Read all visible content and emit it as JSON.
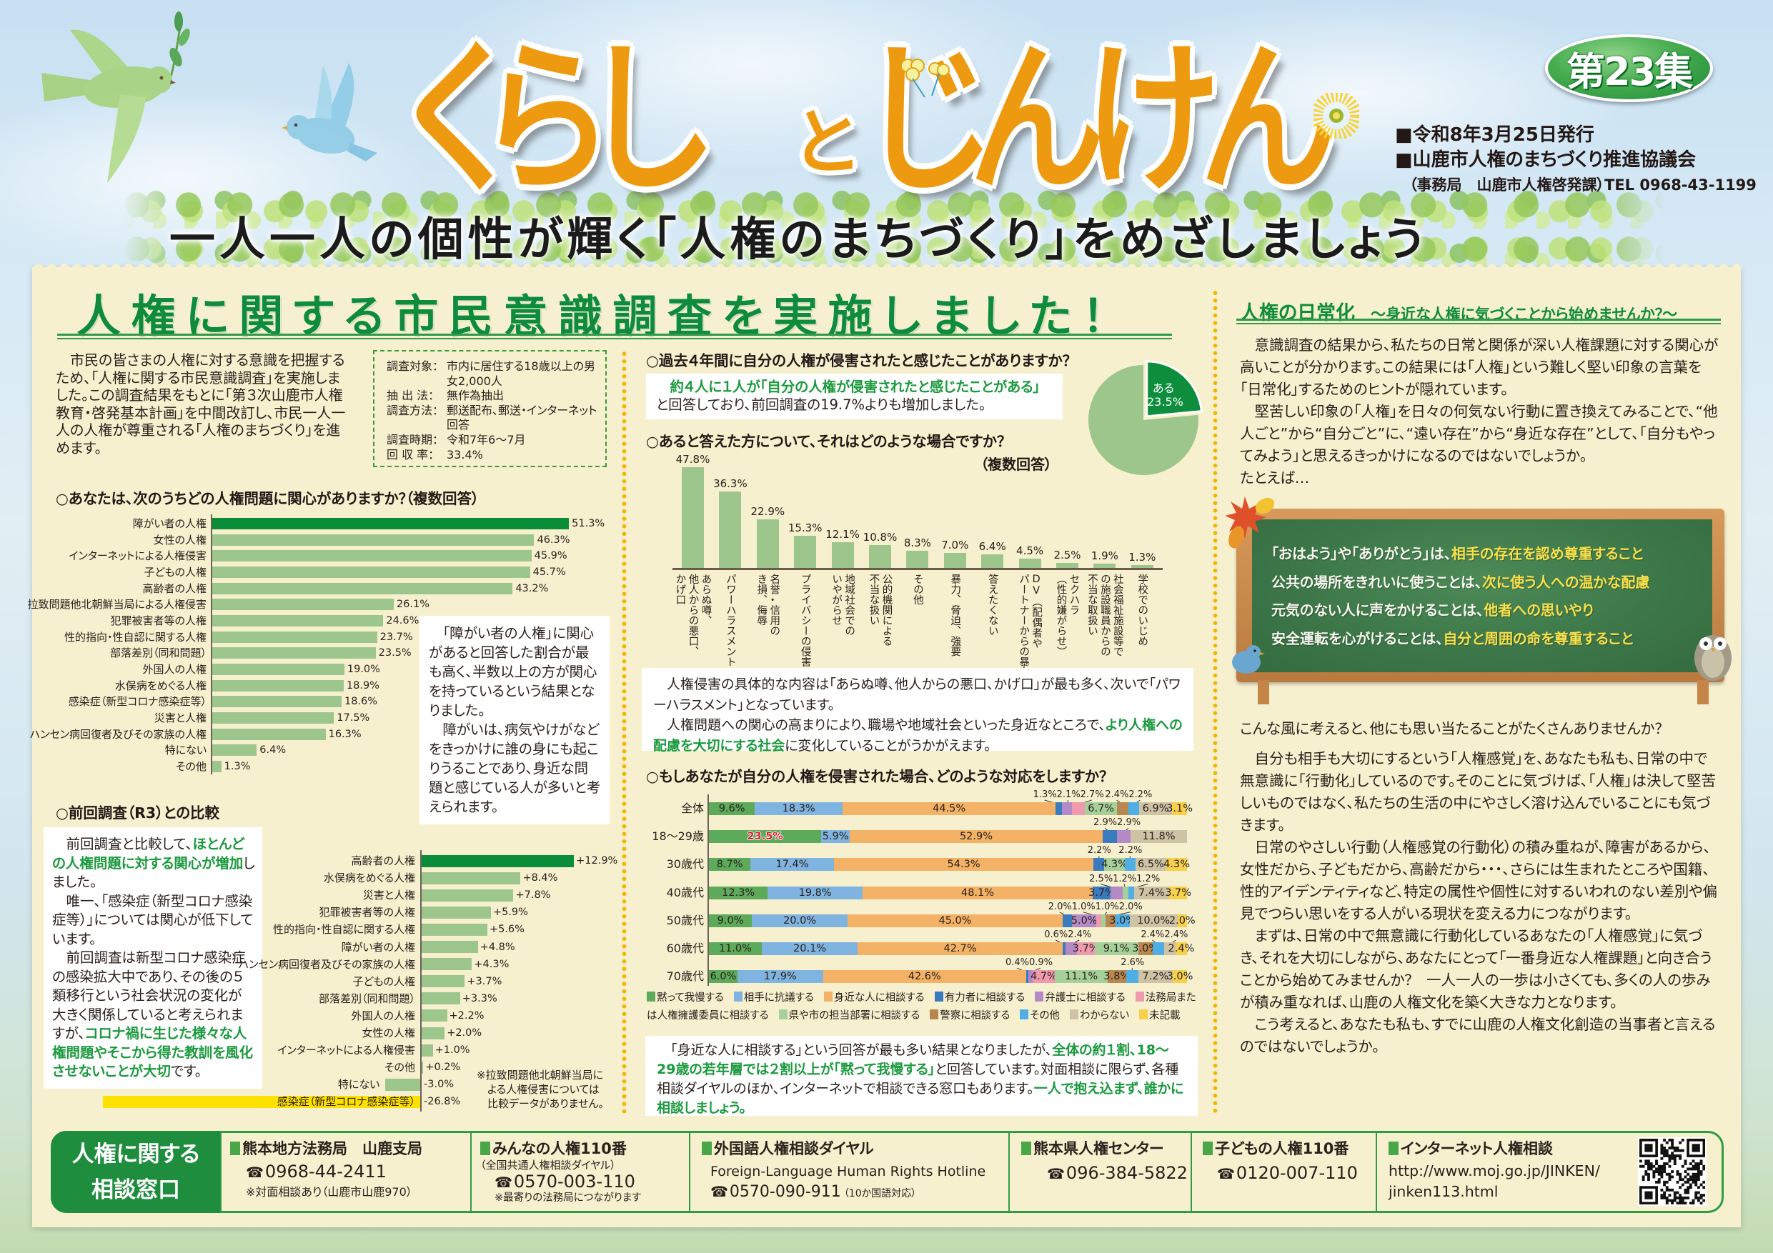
{
  "header": {
    "title_part1": "くらし",
    "title_connector": "と",
    "title_part2": "じんけん",
    "issue_badge": "第23集",
    "info_lines": [
      "■令和8年3月25日発行",
      "■山鹿市人権のまちづくり推進協議会",
      "（事務局　山鹿市人権啓発課）TEL 0968-43-1199"
    ],
    "subtitle": "一人一人の個性が輝く「人権のまちづくり」をめざしましょう"
  },
  "survey": {
    "heading": "人権に関する市民意識調査を実施しました！",
    "intro": "市民の皆さまの人権に対する意識を把握するため、「人権に関する市民意識調査」を実施しました。この調査結果をもとに「第３次山鹿市人権教育・啓発基本計画」を中間改訂し、市民一人一人の人権が尊重される「人権のまちづくり」を進めます。",
    "details": [
      {
        "label": "調査対象：",
        "value": "市内に居住する18歳以上の男女2,000人"
      },
      {
        "label": "抽 出 法：",
        "value": "無作為抽出"
      },
      {
        "label": "調査方法：",
        "value": "郵送配布、郵送・インターネット回答"
      },
      {
        "label": "調査時期：",
        "value": "令和7年6～7月"
      },
      {
        "label": "回 収 率：",
        "value": "33.4%"
      }
    ]
  },
  "interest": {
    "question": "○あなたは、次のうちどの人権問題に関心がありますか？（複数回答）",
    "callout": [
      "「障がい者の人権」に関心があると回答した割合が最も高く、半数以上の方が関心を持っているという結果となりました。",
      "障がいは、病気やけがなどをきっかけに誰の身にも起こりうることであり、身近な問題と感じている人が多いと考えられます。"
    ]
  },
  "comparison": {
    "heading": "○前回調査（R3）との比較",
    "p1": [
      "前回調査と比較して、",
      "ほとんどの人権問題に対する関心が増加",
      "しました。"
    ],
    "p2": "唯一、「感染症（新型コロナ感染症等）」については関心が低下しています。",
    "p3": [
      "前回調査は新型コロナ感染症の感染拡大中であり、その後の５類移行という社会状況の変化が大きく関係していると考えられますが、",
      "コロナ禍に生じた様々な人権問題やそこから得た教訓を風化させないことが大切",
      "です。"
    ],
    "note": [
      "※拉致問題他北朝鮮当局に",
      "よる人権侵害については",
      "比較データがありません。"
    ]
  },
  "violation": {
    "question": "○過去４年間に自分の人権が侵害されたと感じたことがありますか？",
    "summary": [
      "約４人に１人が「自分の人権が侵害されたと感じたことがある」",
      "と回答しており、前回調査の19.7%よりも増加しました。"
    ],
    "pie_label": "ある",
    "pie_value": "23.5%"
  },
  "cases": {
    "question": "○あると答えた方について、それはどのような場合ですか？",
    "multi": "（複数回答）",
    "p1": "人権侵害の具体的な内容は「あらぬ噂、他人からの悪口、かげ口」が最も多く、次いで「パワーハラスメント」となっています。",
    "p2": [
      "人権問題への関心の高まりにより、職場や地域社会といった身近なところで、",
      "より人権への配慮を大切にする社会",
      "に変化していることがうかがえます。"
    ]
  },
  "response": {
    "question": "○もしあなたが自分の人権を侵害された場合、どのような対応をしますか？",
    "summary": [
      "「身近な人に相談する」という回答が最も多い結果となりましたが、",
      "全体の約１割、18～29歳の若年層では２割以上が「黙って我慢する」",
      "と回答しています。対面相談に限らず、各種相談ダイヤルのほか、インターネットで相談できる窓口もあります。",
      "一人で抱え込まず、誰かに相談しましょう。"
    ]
  },
  "daily": {
    "title": "人権の日常化",
    "subtitle": "～身近な人権に気づくことから始めませんか？～",
    "p1": "意識調査の結果から、私たちの日常と関係が深い人権課題に対する関心が高いことが分かります。この結果には「人権」という難しく堅い印象の言葉を「日常化」するためのヒントが隠れています。",
    "p2": "堅苦しい印象の「人権」を日々の何気ない行動に置き換えてみることで、“他人ごと”から“自分ごと”に、“遠い存在”から“身近な存在”として、「自分もやってみよう」と思えるきっかけになるのではないでしょうか。",
    "p3": "たとえば…",
    "board": [
      {
        "a": "「おはよう」や「ありがとう」は、",
        "b": "相手の存在を認め尊重すること"
      },
      {
        "a": "公共の場所をきれいに使うことは、",
        "b": "次に使う人への温かな配慮"
      },
      {
        "a": "元気のない人に声をかけることは、",
        "b": "他者への思いやり"
      },
      {
        "a": "安全運転を心がけることは、",
        "b": "自分と周囲の命を尊重すること"
      }
    ],
    "p4": "こんな風に考えると、他にも思い当たることがたくさんありませんか？",
    "p5": "自分も相手も大切にするという「人権感覚」を、あなたも私も、日常の中で無意識に「行動化」しているのです。そのことに気づけば、「人権」は決して堅苦しいものではなく、私たちの生活の中にやさしく溶け込んでいることにも気づきます。",
    "p6": "日常のやさしい行動（人権感覚の行動化）の積み重ねが、障害があるから、女性だから、子どもだから、高齢だから・・・、さらには生まれたところや国籍、性的アイデンティティなど、特定の属性や個性に対するいわれのない差別や偏見でつらい思いをする人がいる現状を変える力につながります。",
    "p7": "まずは、日常の中で無意識に行動化しているあなたの「人権感覚」に気づき、それを大切にしながら、あなたにとって「一番身近な人権課題」と向き合うことから始めてみませんか？　一人一人の一歩は小さくても、多くの人の歩みが積み重なれば、山鹿の人権文化を築く大きな力となります。",
    "p8": "こう考えると、あなたも私も、すでに山鹿の人権文化創造の当事者と言えるのではないでしょうか。"
  },
  "footer": {
    "title_lines": [
      "人権に関する",
      "相談窓口"
    ],
    "icons": {
      "phone": "phone-icon",
      "bullet": "green-square-icon",
      "qr": "qr-code"
    },
    "contacts": [
      {
        "name": "熊本地方法務局　山鹿支局",
        "phone": "0968-44-2411",
        "note": "※対面相談あり（山鹿市山鹿970）"
      },
      {
        "name": "みんなの人権110番",
        "sub": "（全国共通人権相談ダイヤル）",
        "phone": "0570-003-110",
        "note": "※最寄りの法務局につながります"
      },
      {
        "name": "外国語人権相談ダイヤル",
        "sub": "Foreign-Language Human Rights Hotline",
        "phone": "0570-090-911",
        "note": "（10か国語対応）"
      },
      {
        "name": "熊本県人権センター",
        "phone": "096-384-5822"
      },
      {
        "name": "子どもの人権110番",
        "phone": "0120-007-110"
      },
      {
        "name": "インターネット人権相談",
        "url_line1": "http://www.moj.go.jp/JINKEN/",
        "url_line2": "jinken113.html"
      }
    ]
  },
  "colors": {
    "title_orange": "#ee9a10",
    "heading_green": "#0e8c3a",
    "emphasis_green": "#1b9a3e",
    "panel_cream": "#f7f0cf",
    "board_green": "#3c7648",
    "board_highlight": "#f8e04b"
  },
  "chart_data": [
    {
      "id": "interest",
      "type": "bar",
      "orientation": "horizontal",
      "title": "あなたは、次のうちどの人権問題に関心がありますか？（複数回答）",
      "categories": [
        "障がい者の人権",
        "女性の人権",
        "インターネットによる人権侵害",
        "子どもの人権",
        "高齢者の人権",
        "拉致問題他北朝鮮当局による人権侵害",
        "犯罪被害者等の人権",
        "性的指向・性自認に関する人権",
        "部落差別（同和問題）",
        "外国人の人権",
        "水俣病をめぐる人権",
        "感染症（新型コロナ感染症等）",
        "災害と人権",
        "ハンセン病回復者及びその家族の人権",
        "特にない",
        "その他"
      ],
      "values": [
        51.3,
        46.3,
        45.9,
        45.7,
        43.2,
        26.1,
        24.6,
        23.7,
        23.5,
        19.0,
        18.9,
        18.6,
        17.5,
        16.3,
        6.4,
        1.3
      ],
      "unit": "%",
      "highlight": [
        0
      ],
      "colors": {
        "highlight": "#0a8d38",
        "default": "#9cc68c"
      },
      "grid": false
    },
    {
      "id": "comparison",
      "type": "bar",
      "orientation": "horizontal",
      "title": "前回調査（R3）との比較",
      "categories": [
        "高齢者の人権",
        "水俣病をめぐる人権",
        "災害と人権",
        "犯罪被害者等の人権",
        "性的指向・性自認に関する人権",
        "障がい者の人権",
        "ハンセン病回復者及びその家族の人権",
        "子どもの人権",
        "部落差別（同和問題）",
        "外国人の人権",
        "女性の人権",
        "インターネットによる人権侵害",
        "その他",
        "特にない",
        "感染症（新型コロナ感染症等）"
      ],
      "values": [
        12.9,
        8.4,
        7.8,
        5.9,
        5.6,
        4.8,
        4.3,
        3.7,
        3.3,
        2.2,
        2.0,
        1.0,
        0.2,
        -3.0,
        -26.8
      ],
      "unit": "%",
      "highlight": [
        0
      ],
      "highlight_negative": [
        14
      ],
      "colors": {
        "highlight": "#0a8d38",
        "default": "#9cc68c",
        "negative_highlight": "#ffe100"
      },
      "grid": false
    },
    {
      "id": "violated",
      "type": "pie",
      "title": "過去４年間に自分の人権が侵害されたと感じたことがありますか？",
      "slices": [
        {
          "label": "ある",
          "value": 23.5,
          "color": "#0e8e3c"
        },
        {
          "label": "",
          "value": 76.5,
          "color": "#9cc68c"
        }
      ]
    },
    {
      "id": "cases",
      "type": "bar",
      "orientation": "vertical",
      "title": "あると答えた方について、それはどのような場合ですか？（複数回答）",
      "categories": [
        "あらぬ噂、他人からの悪口、かげ口",
        "パワーハラスメント",
        "名誉・信用のき損、侮辱",
        "プライバシーの侵害",
        "地域社会でのいやがらせ",
        "公的機関による不当な扱い",
        "その他",
        "暴力、脅迫、強要",
        "答えたくない",
        "DV（配偶者やパートナーからの暴力）",
        "セクハラ（性的嫌がらせ）",
        "社会福祉施設等での施設職員からの不当な取扱い",
        "学校でのいじめ"
      ],
      "label_lines": [
        [
          "あらぬ噂、",
          "他人からの悪口、",
          "かげ口"
        ],
        [
          "パワーハラスメント"
        ],
        [
          "名誉・信用の",
          "き損、侮辱"
        ],
        [
          "プライバシーの侵害"
        ],
        [
          "地域社会での",
          "いやがらせ"
        ],
        [
          "公的機関による",
          "不当な扱い"
        ],
        [
          "その他"
        ],
        [
          "暴力、脅迫、強要"
        ],
        [
          "答えたくない"
        ],
        [
          "DV（配偶者や",
          "パートナーからの暴力）"
        ],
        [
          "セクハラ",
          "（性的嫌がらせ）"
        ],
        [
          "社会福祉施設等で",
          "の施設職員からの",
          "不当な取扱い"
        ],
        [
          "学校でのいじめ"
        ]
      ],
      "values": [
        47.8,
        36.3,
        22.9,
        15.3,
        12.1,
        10.8,
        8.3,
        7.0,
        6.4,
        4.5,
        2.5,
        1.9,
        1.3
      ],
      "unit": "%",
      "color": "#9cc68c"
    },
    {
      "id": "response",
      "type": "bar",
      "stacked": true,
      "orientation": "horizontal",
      "title": "もしあなたが自分の人権を侵害された場合、どのような対応をしますか？",
      "categories": [
        "全体",
        "18～29歳",
        "30歳代",
        "40歳代",
        "50歳代",
        "60歳代",
        "70歳代"
      ],
      "series": [
        {
          "name": "黙って我慢する",
          "color": "#5daa5a",
          "values": [
            9.6,
            23.5,
            8.7,
            12.3,
            9.0,
            11.0,
            6.0
          ]
        },
        {
          "name": "相手に抗議する",
          "color": "#7fb3e0",
          "values": [
            18.3,
            5.9,
            17.4,
            19.8,
            20.0,
            20.1,
            17.9
          ]
        },
        {
          "name": "身近な人に相談する",
          "color": "#f4b266",
          "values": [
            44.5,
            52.9,
            54.3,
            48.1,
            45.0,
            42.7,
            42.6
          ]
        },
        {
          "name": "有力者に相談する",
          "color": "#3a7bc0",
          "values": [
            1.3,
            2.9,
            2.2,
            3.7,
            2.0,
            0.6,
            0.4
          ]
        },
        {
          "name": "弁護士に相談する",
          "color": "#b48ac6",
          "values": [
            2.1,
            2.9,
            0,
            2.5,
            5.0,
            2.4,
            0.9
          ]
        },
        {
          "name": "法務局または人権擁護委員に相談する",
          "color": "#f09aae",
          "values": [
            2.7,
            0,
            0,
            0,
            1.0,
            3.7,
            4.7
          ]
        },
        {
          "name": "県や市の担当部署に相談する",
          "color": "#a6d09a",
          "values": [
            6.7,
            0,
            4.3,
            1.2,
            1.0,
            9.1,
            11.1
          ]
        },
        {
          "name": "警察に相談する",
          "color": "#b8874f",
          "values": [
            2.4,
            0,
            0,
            0,
            2.0,
            3.0,
            3.8
          ]
        },
        {
          "name": "その他",
          "color": "#4faee6",
          "values": [
            2.2,
            0,
            2.2,
            1.2,
            3.0,
            2.4,
            2.6
          ]
        },
        {
          "name": "わからない",
          "color": "#cfc3a6",
          "values": [
            6.9,
            11.8,
            6.5,
            7.4,
            10.0,
            2.4,
            7.2
          ]
        },
        {
          "name": "未記載",
          "color": "#f8d04c",
          "values": [
            3.1,
            0,
            4.3,
            3.7,
            2.0,
            2.4,
            3.0
          ]
        }
      ],
      "label_above": [
        [
          3,
          4,
          5,
          7,
          8
        ],
        [
          3,
          4
        ],
        [
          3,
          8
        ],
        [
          4,
          6,
          8
        ],
        [
          3,
          5,
          6,
          7
        ],
        [
          3,
          4,
          8,
          9
        ],
        [
          3,
          4,
          8
        ]
      ],
      "emphasis_labels": [
        {
          "row": 1,
          "series": 0,
          "color": "#d2232a"
        }
      ],
      "legend_position": "bottom",
      "unit": "%"
    }
  ]
}
